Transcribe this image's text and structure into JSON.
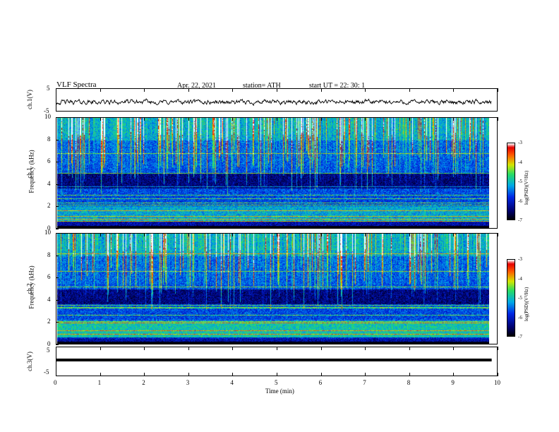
{
  "header": {
    "title": "VLF  Spectra",
    "date": "Apr. 22, 2021",
    "station": "station= ATH",
    "start": "start  UT  =    22: 30: 1"
  },
  "chart_data": [
    {
      "type": "line",
      "id": "ch1-waveform",
      "ylabel": "ch.1(V)",
      "ylim": [
        -5,
        5
      ],
      "yticks": [
        "5",
        "-5"
      ],
      "xlim": [
        0,
        10
      ],
      "x_extent": [
        0,
        9.85
      ]
    },
    {
      "type": "heatmap",
      "id": "ch1-spectrogram",
      "ylabel_line1": "ch.1",
      "ylabel_line2": "Frequency  (kHz)",
      "ylim": [
        0,
        10
      ],
      "yticks": [
        "0",
        "2",
        "4",
        "6",
        "8",
        "10"
      ],
      "colorbar": {
        "label": "log(PSD)(V²/Hz)",
        "range": [
          -7,
          -3
        ],
        "ticks": [
          "-3",
          "-4",
          "-5",
          "-6",
          "-7"
        ]
      }
    },
    {
      "type": "heatmap",
      "id": "ch2-spectrogram",
      "ylabel_line1": "ch.2",
      "ylabel_line2": "Frequency  (kHz)",
      "ylim": [
        0,
        10
      ],
      "yticks": [
        "0",
        "2",
        "4",
        "6",
        "8",
        "10"
      ],
      "colorbar": {
        "label": "log(PSD)(V²/Hz)",
        "range": [
          -7,
          -3
        ],
        "ticks": [
          "-3",
          "-4",
          "-5",
          "-6",
          "-7"
        ]
      }
    },
    {
      "type": "line",
      "id": "ch3-waveform",
      "ylabel": "ch.3(V)",
      "ylim": [
        -5,
        5
      ],
      "yticks": [
        "5",
        "-5"
      ],
      "xlim": [
        0,
        10
      ],
      "x_extent": [
        0,
        9.85
      ],
      "xlabel": "Time  (min)",
      "xticks": [
        "0",
        "1",
        "2",
        "3",
        "4",
        "5",
        "6",
        "7",
        "8",
        "9",
        "10"
      ]
    }
  ]
}
